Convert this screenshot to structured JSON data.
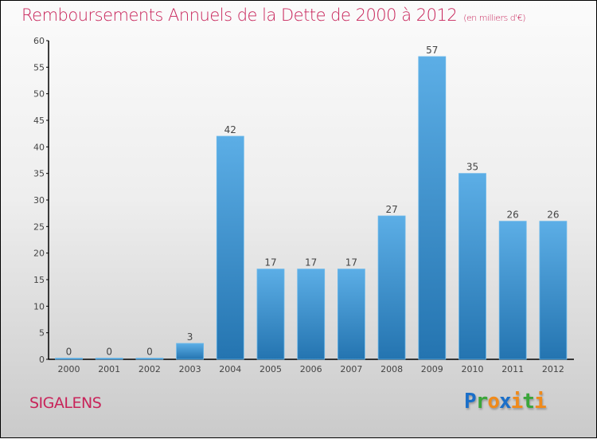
{
  "header": {
    "title": "Remboursements Annuels de la Dette de 2000 à 2012",
    "unit": "(en milliers d'€)"
  },
  "footer": {
    "town": "SIGALENS",
    "logo": "Proxiti"
  },
  "colors": {
    "title": "#c8245a",
    "bar_top": "#5caee6",
    "bar_bottom": "#2474b0",
    "logo": [
      "#1a6fc9",
      "#3aa63a",
      "#f08a1a",
      "#1a6fc9",
      "#f08a1a",
      "#3aa63a",
      "#f08a1a"
    ]
  },
  "chart_data": {
    "type": "bar",
    "title": "Remboursements Annuels de la Dette de 2000 à 2012",
    "xlabel": "",
    "ylabel": "",
    "categories": [
      "2000",
      "2001",
      "2002",
      "2003",
      "2004",
      "2005",
      "2006",
      "2007",
      "2008",
      "2009",
      "2010",
      "2011",
      "2012"
    ],
    "values": [
      0,
      0,
      0,
      3,
      42,
      17,
      17,
      17,
      27,
      57,
      35,
      26,
      26
    ],
    "ylim": [
      0,
      60
    ],
    "yticks": [
      0,
      5,
      10,
      15,
      20,
      25,
      30,
      35,
      40,
      45,
      50,
      55,
      60
    ],
    "grid": false,
    "data_labels": true
  }
}
